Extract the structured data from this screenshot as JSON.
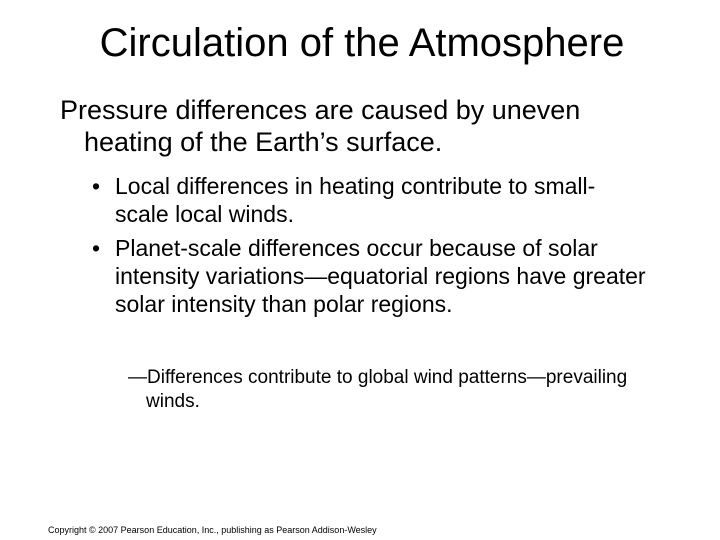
{
  "title": "Circulation of the Atmosphere",
  "main_point": "Pressure differences are caused by uneven heating of the Earth’s surface.",
  "bullets": [
    "Local differences in heating contribute to small-scale local winds.",
    "Planet-scale differences occur because of solar intensity variations—equatorial regions have greater solar intensity than polar regions."
  ],
  "sub_bullet": "—Differences contribute to global wind patterns—prevailing winds.",
  "footer": "Copyright © 2007 Pearson Education, Inc., publishing as Pearson Addison-Wesley"
}
